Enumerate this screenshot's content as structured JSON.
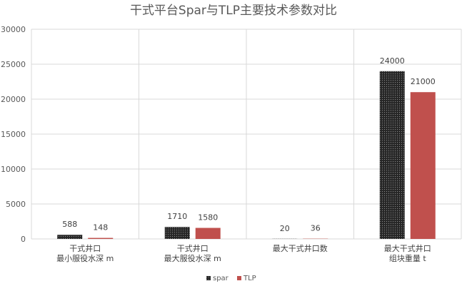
{
  "chart_data": {
    "type": "bar",
    "title": "干式平台Spar与TLP主要技术参数对比",
    "categories": [
      [
        "干式井口",
        "最小服役水深 m"
      ],
      [
        "干式井口",
        "最大服役水深 m"
      ],
      [
        "最大干式井口数"
      ],
      [
        "最大干式井口",
        "组块重量 t"
      ]
    ],
    "series": [
      {
        "name": "spar",
        "values": [
          588,
          1710,
          20,
          24000
        ],
        "color": "#1a1a1a",
        "pattern": "dots"
      },
      {
        "name": "TLP",
        "values": [
          148,
          1580,
          36,
          21000
        ],
        "color": "#c0504d"
      }
    ],
    "ylim": [
      0,
      30000
    ],
    "yticks": [
      0,
      5000,
      10000,
      15000,
      20000,
      25000,
      30000
    ],
    "grid": true,
    "legend": "bottom"
  }
}
